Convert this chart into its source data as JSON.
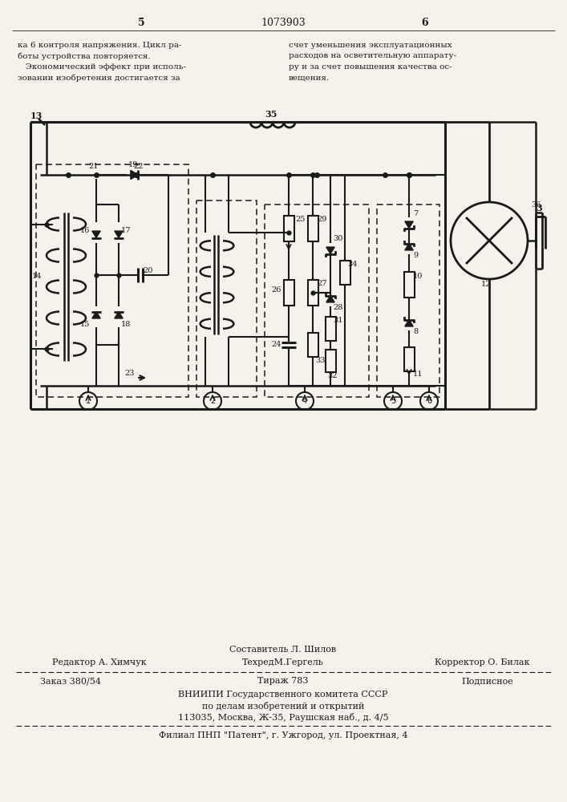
{
  "page_number_left": "5",
  "patent_number": "1073903",
  "page_number_right": "6",
  "footer_line1_center": "Составитель Л. Шилов",
  "footer_line2_left": "Редактор А. Химчук",
  "footer_line2_center": "ТехредМ.Гергель",
  "footer_line2_right": "Корректор О. Билак",
  "footer_line3_left": "Заказ 380/54",
  "footer_line3_center": "Тираж 783",
  "footer_line3_right": "Подписное",
  "footer_line4": "ВНИИПИ Государственного комитета СССР",
  "footer_line5": "по делам изобретений и открытий",
  "footer_line6": "113035, Москва, Ж-35, Раушская наб., д. 4/5",
  "footer_line7": "Филиал ПНП \"Патент\", г. Ужгород, ул. Проектная, 4",
  "bg_color": "#f5f2ec",
  "line_color": "#1a1a1a",
  "text_color": "#1a1a1a"
}
